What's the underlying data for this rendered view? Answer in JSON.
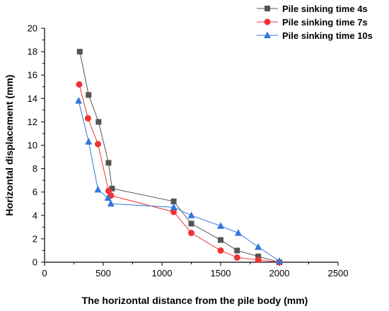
{
  "chart_data": {
    "type": "line",
    "xlabel": "The horizontal distance from the pile body (mm)",
    "ylabel": "Horizontal displacement (mm)",
    "xlim": [
      0,
      2500
    ],
    "ylim": [
      0,
      20
    ],
    "xticks": [
      0,
      500,
      1000,
      1500,
      2000,
      2500
    ],
    "yticks": [
      0,
      2,
      4,
      6,
      8,
      10,
      12,
      14,
      16,
      18,
      20
    ],
    "grid": false,
    "legend_position": "top-right",
    "series": [
      {
        "name": "Pile sinking time 4s",
        "color": "#555555",
        "marker": "square",
        "x": [
          300,
          375,
          460,
          545,
          575,
          1100,
          1250,
          1500,
          1640,
          1820,
          2000
        ],
        "y": [
          18.0,
          14.3,
          12.0,
          8.5,
          6.3,
          5.2,
          3.3,
          1.9,
          1.0,
          0.5,
          0.0
        ]
      },
      {
        "name": "Pile sinking time 7s",
        "color": "#ee3333",
        "marker": "circle",
        "x": [
          295,
          370,
          455,
          545,
          565,
          1100,
          1250,
          1500,
          1640,
          1820,
          2000
        ],
        "y": [
          15.2,
          12.3,
          10.1,
          6.1,
          5.7,
          4.3,
          2.5,
          1.0,
          0.4,
          0.2,
          0.0
        ]
      },
      {
        "name": "Pile sinking time 10s",
        "color": "#3377dd",
        "marker": "triangle",
        "x": [
          290,
          375,
          455,
          540,
          565,
          1100,
          1250,
          1500,
          1650,
          1820,
          2000
        ],
        "y": [
          13.8,
          10.3,
          6.2,
          5.5,
          5.0,
          4.7,
          4.0,
          3.1,
          2.5,
          1.3,
          0.1
        ]
      }
    ]
  }
}
